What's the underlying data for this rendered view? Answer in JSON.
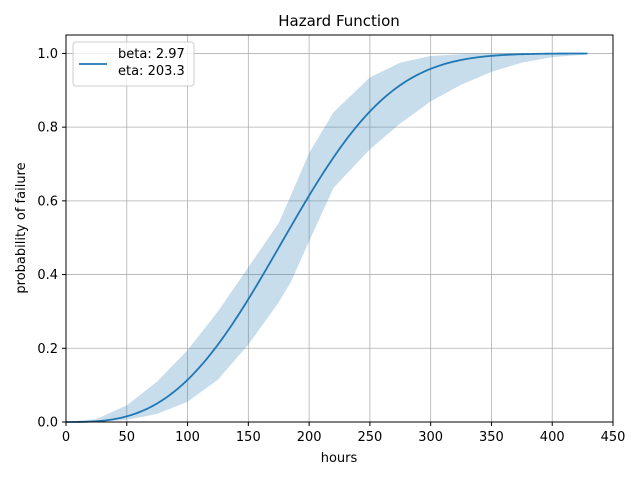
{
  "chart_data": {
    "type": "line",
    "title": "Hazard Function",
    "xlabel": "hours",
    "ylabel": "probability of failure",
    "xlim": [
      0,
      450
    ],
    "ylim": [
      0,
      1.05
    ],
    "x_ticks": [
      0,
      50,
      100,
      150,
      200,
      250,
      300,
      350,
      400,
      450
    ],
    "y_ticks": [
      0.0,
      0.2,
      0.4,
      0.6,
      0.8,
      1.0
    ],
    "x_tick_labels": [
      "0",
      "50",
      "100",
      "150",
      "200",
      "250",
      "300",
      "350",
      "400",
      "450"
    ],
    "y_tick_labels": [
      "0.0",
      "0.2",
      "0.4",
      "0.6",
      "0.8",
      "1.0"
    ],
    "grid": true,
    "legend_position": "top-left",
    "legend": {
      "line1": "beta: 2.97",
      "line2": "eta: 203.3"
    },
    "series": [
      {
        "beta": 2.97,
        "eta": 203.3,
        "color": "#1f77b4",
        "x": [
          0,
          25,
          50,
          75,
          100,
          125,
          150,
          175,
          200,
          225,
          250,
          275,
          300,
          325,
          350,
          375,
          400,
          429
        ],
        "y": [
          0.0,
          0.002,
          0.015,
          0.049,
          0.112,
          0.205,
          0.322,
          0.452,
          0.582,
          0.7,
          0.799,
          0.875,
          0.928,
          0.962,
          0.981,
          0.991,
          0.996,
          0.999
        ]
      }
    ],
    "confidence_band": {
      "color": "#1f77b4",
      "opacity": 0.25,
      "x": [
        0,
        25,
        50,
        75,
        100,
        125,
        150,
        175,
        185,
        200,
        220,
        250,
        275,
        300,
        325,
        350,
        375,
        400,
        429
      ],
      "upper": [
        0.0,
        0.008,
        0.045,
        0.11,
        0.195,
        0.3,
        0.42,
        0.54,
        0.615,
        0.73,
        0.84,
        0.935,
        0.975,
        0.993,
        0.998,
        1.0,
        1.0,
        1.0,
        1.0
      ],
      "lower": [
        0.0,
        0.0,
        0.006,
        0.022,
        0.055,
        0.115,
        0.21,
        0.325,
        0.38,
        0.49,
        0.635,
        0.74,
        0.81,
        0.87,
        0.915,
        0.95,
        0.975,
        0.99,
        0.997
      ]
    }
  }
}
